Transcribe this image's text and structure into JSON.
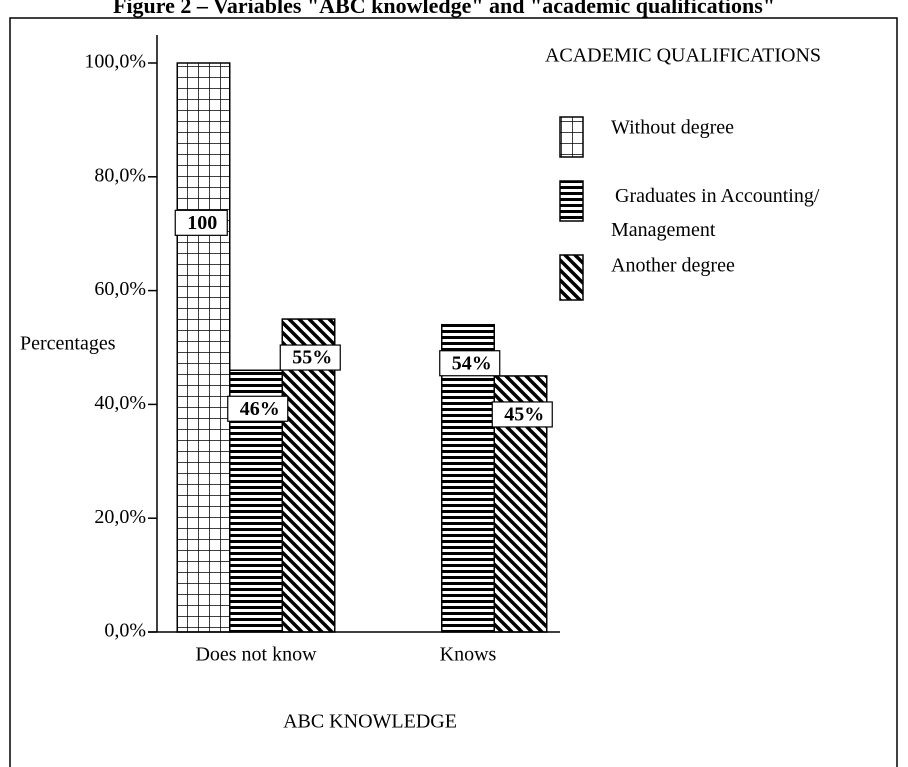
{
  "chart_data": {
    "type": "bar",
    "title": "Figure 2 – Variables \"ABC knowledge\" and \"academic qualifications\"",
    "x_label": "ABC KNOWLEDGE",
    "y_label": "Percentages",
    "legend_title": "ACADEMIC QUALIFICATIONS",
    "legend": "top-right",
    "categories": [
      "Does not know",
      "Knows"
    ],
    "series": [
      {
        "name": "Without degree",
        "color": "#000000",
        "pattern": "grid",
        "values": [
          100,
          null
        ],
        "value_labels": [
          "100",
          null
        ]
      },
      {
        "name": "Graduates in Accounting/ Management",
        "color": "#000000",
        "pattern": "horizontal",
        "values": [
          46,
          54
        ],
        "value_labels": [
          "46%",
          "54%"
        ]
      },
      {
        "name": "Another degree",
        "color": "#000000",
        "pattern": "diagonal",
        "values": [
          55,
          45
        ],
        "value_labels": [
          "55%",
          "45%"
        ]
      }
    ],
    "ylim": [
      0,
      100
    ],
    "yticks": [
      {
        "value": 0,
        "label": "0,0%"
      },
      {
        "value": 20,
        "label": "20,0%"
      },
      {
        "value": 40,
        "label": "40,0%"
      },
      {
        "value": 60,
        "label": "60,0%"
      },
      {
        "value": 80,
        "label": "80,0%"
      },
      {
        "value": 100,
        "label": "100,0%"
      }
    ]
  }
}
